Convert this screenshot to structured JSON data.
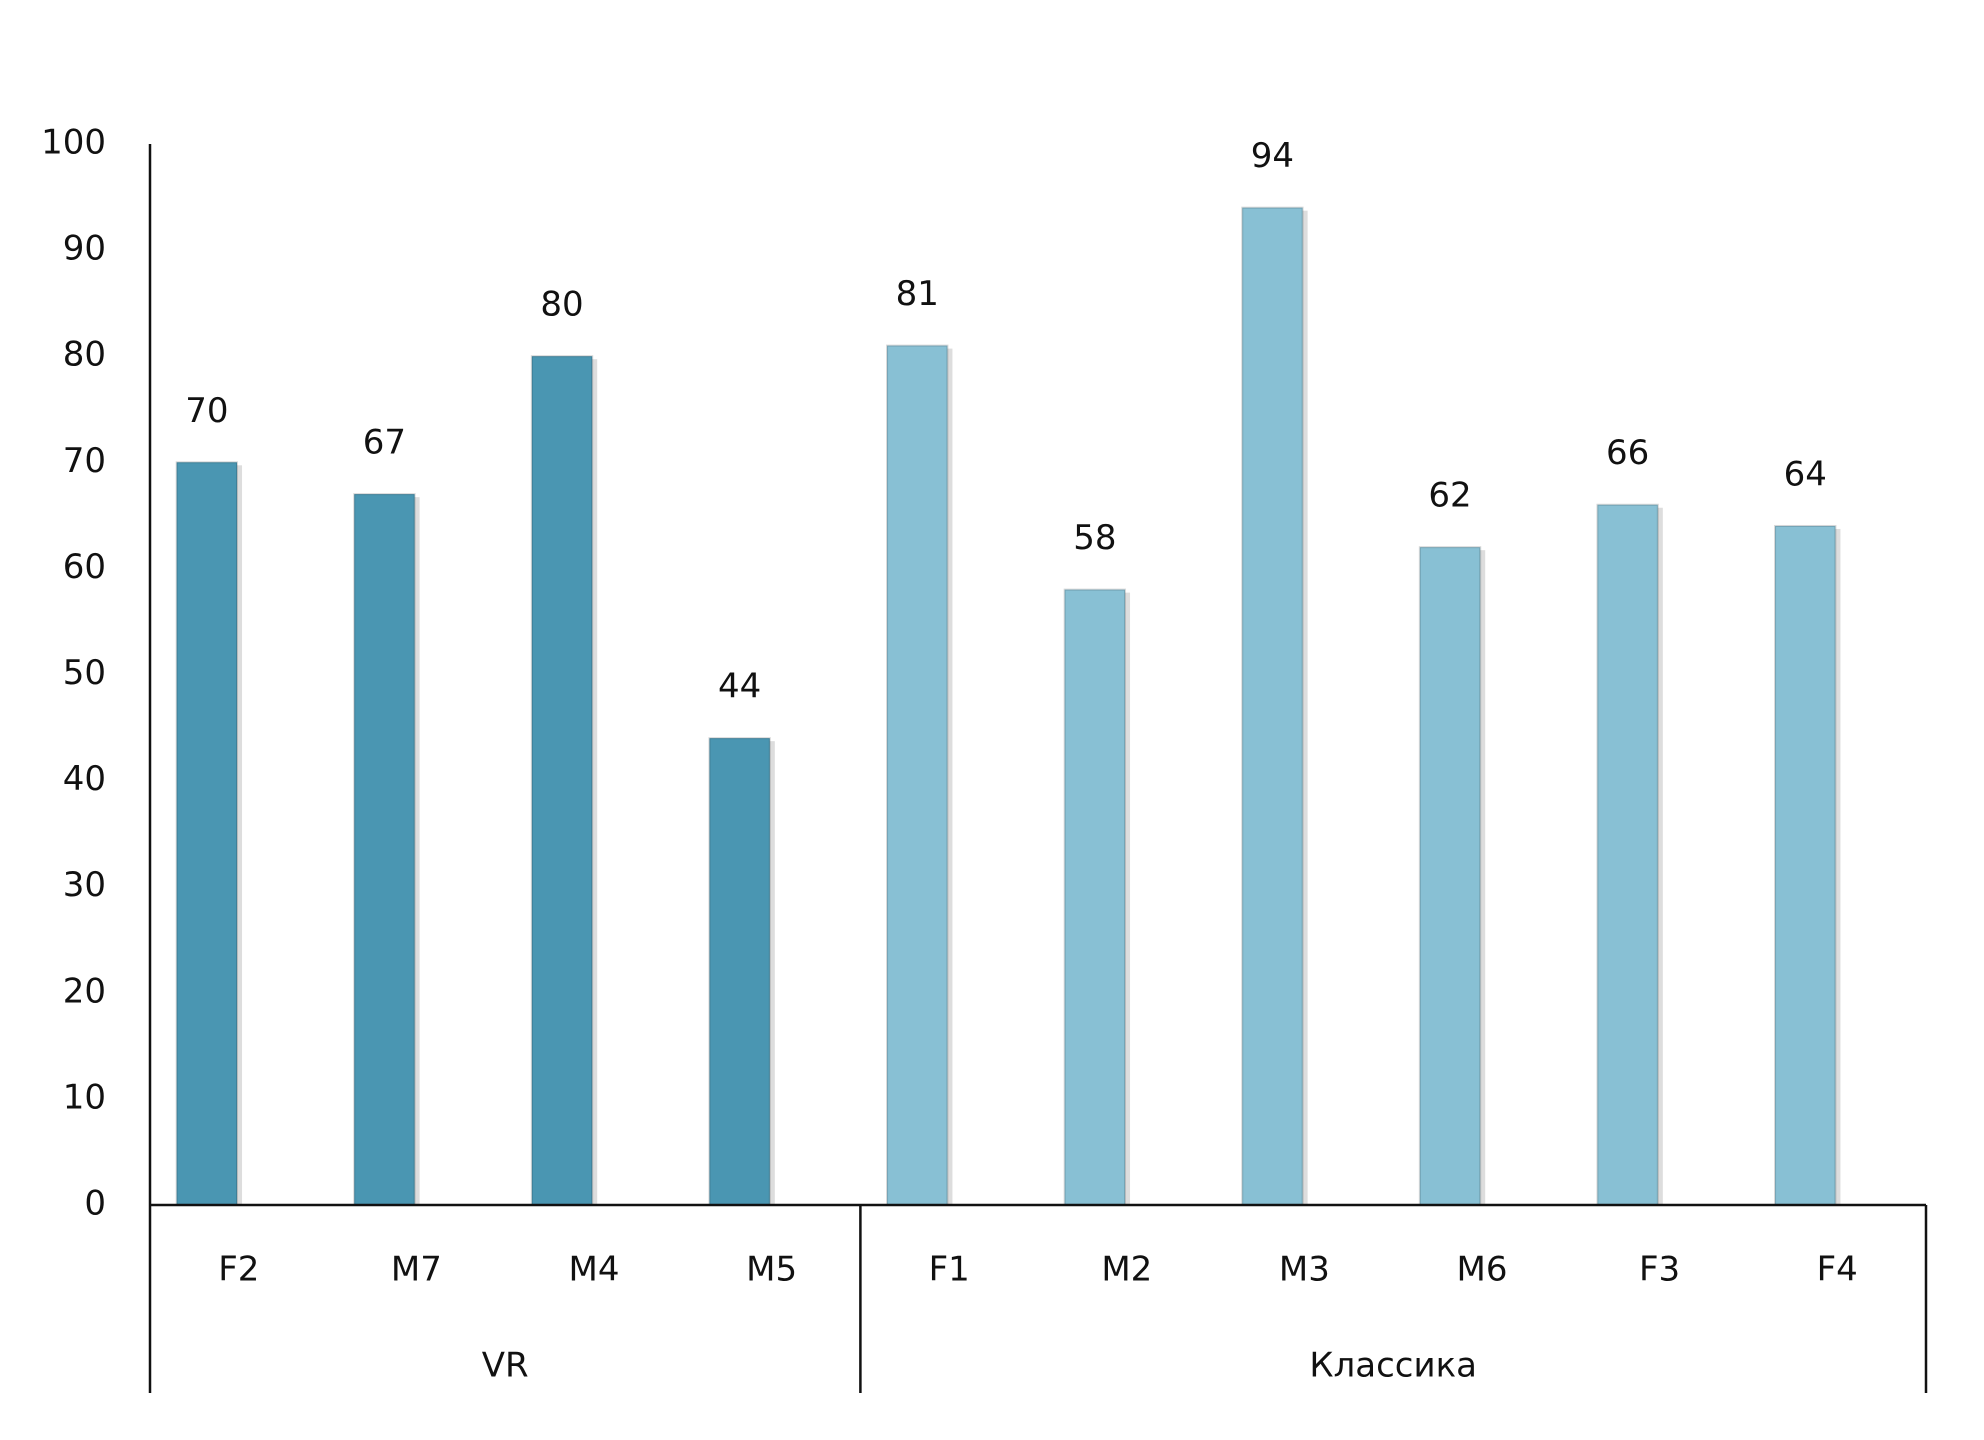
{
  "chart_data": {
    "type": "bar",
    "groups": [
      {
        "name": "VR",
        "color": "#4a96b2",
        "categories": [
          "F2",
          "M7",
          "M4",
          "M5"
        ],
        "values": [
          70,
          67,
          80,
          44
        ]
      },
      {
        "name": "Классика",
        "color": "#88c0d4",
        "categories": [
          "F1",
          "M2",
          "M3",
          "M6",
          "F3",
          "F4"
        ],
        "values": [
          81,
          58,
          94,
          62,
          66,
          64
        ]
      }
    ],
    "ylim": [
      0,
      100
    ],
    "yticks": [
      0,
      10,
      20,
      30,
      40,
      50,
      60,
      70,
      80,
      90,
      100
    ],
    "grid": false
  }
}
